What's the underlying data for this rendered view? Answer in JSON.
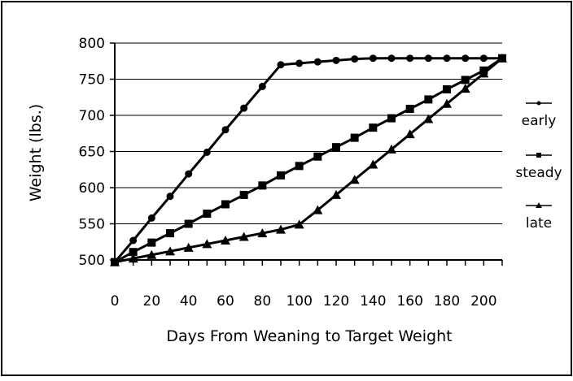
{
  "chart_data": {
    "type": "line",
    "title": "",
    "xlabel": "Days From Weaning to Target Weight",
    "ylabel": "Weight (lbs.)",
    "xlim": [
      0,
      210
    ],
    "ylim": [
      500,
      800
    ],
    "x_ticks": [
      0,
      20,
      40,
      60,
      80,
      100,
      120,
      140,
      160,
      180,
      200
    ],
    "y_ticks": [
      500,
      550,
      600,
      650,
      700,
      750,
      800
    ],
    "grid": "horizontal",
    "legend_position": "right",
    "x": [
      0,
      10,
      20,
      30,
      40,
      50,
      60,
      70,
      80,
      90,
      100,
      110,
      120,
      130,
      140,
      150,
      160,
      170,
      180,
      190,
      200,
      210
    ],
    "series": [
      {
        "name": "early",
        "marker": "circle",
        "color": "#000000",
        "values": [
          497,
          527,
          558,
          588,
          619,
          649,
          680,
          710,
          740,
          770,
          772,
          774,
          776,
          778,
          779,
          779,
          779,
          779,
          779,
          779,
          779,
          779
        ]
      },
      {
        "name": "steady",
        "marker": "square",
        "color": "#000000",
        "values": [
          497,
          511,
          524,
          537,
          550,
          564,
          577,
          590,
          603,
          617,
          630,
          643,
          656,
          669,
          683,
          696,
          709,
          722,
          736,
          749,
          762,
          779
        ]
      },
      {
        "name": "late",
        "marker": "triangle",
        "color": "#000000",
        "values": [
          497,
          502,
          507,
          512,
          517,
          522,
          527,
          532,
          537,
          542,
          549,
          569,
          590,
          611,
          632,
          653,
          674,
          695,
          716,
          737,
          758,
          779
        ]
      }
    ]
  }
}
